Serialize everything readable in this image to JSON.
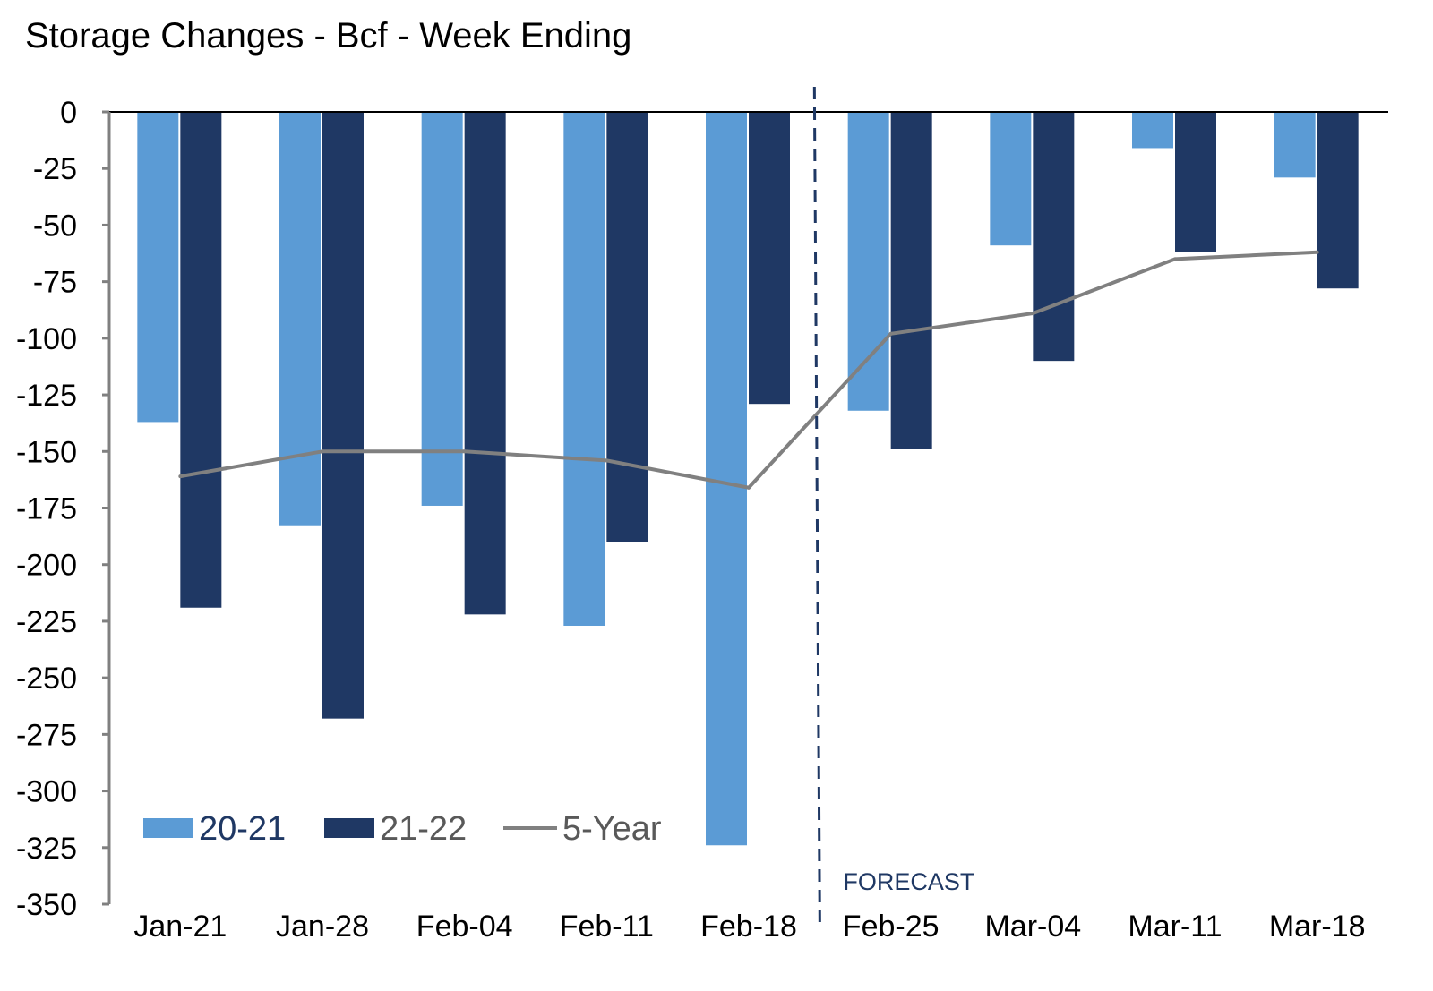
{
  "chart_data": {
    "type": "bar",
    "title": "Storage Changes - Bcf - Week Ending",
    "xlabel": "",
    "ylabel": "",
    "ylim": [
      -350,
      0
    ],
    "yticks": [
      0,
      -25,
      -50,
      -75,
      -100,
      -125,
      -150,
      -175,
      -200,
      -225,
      -250,
      -275,
      -300,
      -325,
      -350
    ],
    "categories": [
      "Jan-21",
      "Jan-28",
      "Feb-04",
      "Feb-11",
      "Feb-18",
      "Feb-25",
      "Mar-04",
      "Mar-11",
      "Mar-18"
    ],
    "series": [
      {
        "name": "20-21",
        "type": "bar",
        "color": "#5B9BD5",
        "values": [
          -137,
          -183,
          -174,
          -227,
          -324,
          -132,
          -59,
          -16,
          -29
        ]
      },
      {
        "name": "21-22",
        "type": "bar",
        "color": "#1F3864",
        "values": [
          -219,
          -268,
          -222,
          -190,
          -129,
          -149,
          -110,
          -62,
          -78
        ]
      },
      {
        "name": "5-Year",
        "type": "line",
        "color": "#808080",
        "values": [
          -161,
          -150,
          -150,
          -154,
          -166,
          -98,
          -89,
          -65,
          -62
        ]
      }
    ],
    "annotation": {
      "text": "FORECAST",
      "color": "#1F3864"
    },
    "legend": {
      "position": "bottom-left"
    },
    "grid": false
  }
}
